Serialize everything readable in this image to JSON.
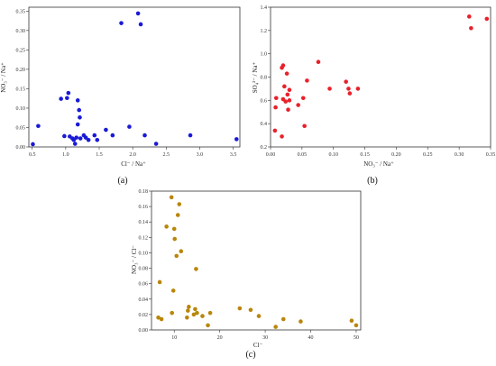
{
  "chart_data": [
    {
      "id": "a",
      "type": "scatter",
      "caption": "(a)",
      "xlabel": "Cl⁻ / Na⁺",
      "ylabel": "NO₃⁻ / Na⁺",
      "xlim": [
        0.45,
        3.6
      ],
      "ylim": [
        0,
        0.36
      ],
      "xticks": [
        0.5,
        1.0,
        1.5,
        2.0,
        2.5,
        3.0,
        3.5
      ],
      "xtick_labels": [
        "0.5",
        "1.0",
        "1.5",
        "2.0",
        "2.5",
        "3.0",
        "3.5"
      ],
      "yticks": [
        0,
        0.05,
        0.1,
        0.15,
        0.2,
        0.25,
        0.3,
        0.35
      ],
      "ytick_labels": [
        "0.00",
        "0.05",
        "0.10",
        "0.15",
        "0.20",
        "0.25",
        "0.30",
        "0.35"
      ],
      "color": "#1a1ad6",
      "grid": false,
      "points": [
        [
          0.51,
          0.007
        ],
        [
          0.59,
          0.054
        ],
        [
          0.93,
          0.124
        ],
        [
          0.98,
          0.028
        ],
        [
          1.02,
          0.126
        ],
        [
          1.04,
          0.139
        ],
        [
          1.06,
          0.027
        ],
        [
          1.1,
          0.022
        ],
        [
          1.12,
          0.018
        ],
        [
          1.14,
          0.008
        ],
        [
          1.16,
          0.024
        ],
        [
          1.18,
          0.058
        ],
        [
          1.18,
          0.12
        ],
        [
          1.2,
          0.095
        ],
        [
          1.21,
          0.076
        ],
        [
          1.22,
          0.022
        ],
        [
          1.27,
          0.03
        ],
        [
          1.3,
          0.024
        ],
        [
          1.34,
          0.018
        ],
        [
          1.43,
          0.03
        ],
        [
          1.47,
          0.018
        ],
        [
          1.6,
          0.044
        ],
        [
          1.7,
          0.03
        ],
        [
          1.83,
          0.319
        ],
        [
          1.95,
          0.052
        ],
        [
          2.08,
          0.344
        ],
        [
          2.12,
          0.316
        ],
        [
          2.18,
          0.03
        ],
        [
          2.35,
          0.008
        ],
        [
          2.86,
          0.03
        ],
        [
          3.55,
          0.02
        ]
      ]
    },
    {
      "id": "b",
      "type": "scatter",
      "caption": "(b)",
      "xlabel": "NO₃⁻ / Na⁺",
      "ylabel": "SO₄²⁻ / Na⁺",
      "xlim": [
        0,
        0.35
      ],
      "ylim": [
        0.2,
        1.4
      ],
      "xticks": [
        0,
        0.05,
        0.1,
        0.15,
        0.2,
        0.25,
        0.3,
        0.35
      ],
      "xtick_labels": [
        "0.00",
        "0.05",
        "0.10",
        "0.15",
        "0.20",
        "0.25",
        "0.30",
        "0.35"
      ],
      "yticks": [
        0.2,
        0.4,
        0.6,
        0.8,
        1.0,
        1.2,
        1.4
      ],
      "ytick_labels": [
        "0.2",
        "0.4",
        "0.6",
        "0.8",
        "1.0",
        "1.2",
        "1.4"
      ],
      "color": "#e8212b",
      "grid": false,
      "points": [
        [
          0.007,
          0.34
        ],
        [
          0.008,
          0.54
        ],
        [
          0.009,
          0.62
        ],
        [
          0.018,
          0.29
        ],
        [
          0.018,
          0.88
        ],
        [
          0.02,
          0.61
        ],
        [
          0.02,
          0.9
        ],
        [
          0.022,
          0.72
        ],
        [
          0.024,
          0.59
        ],
        [
          0.026,
          0.83
        ],
        [
          0.027,
          0.65
        ],
        [
          0.028,
          0.52
        ],
        [
          0.03,
          0.69
        ],
        [
          0.03,
          0.6
        ],
        [
          0.044,
          0.56
        ],
        [
          0.052,
          0.62
        ],
        [
          0.054,
          0.38
        ],
        [
          0.058,
          0.77
        ],
        [
          0.076,
          0.93
        ],
        [
          0.094,
          0.7
        ],
        [
          0.12,
          0.76
        ],
        [
          0.124,
          0.7
        ],
        [
          0.126,
          0.66
        ],
        [
          0.139,
          0.7
        ],
        [
          0.316,
          1.32
        ],
        [
          0.319,
          1.22
        ],
        [
          0.344,
          1.3
        ]
      ]
    },
    {
      "id": "c",
      "type": "scatter",
      "caption": "(c)",
      "xlabel": "Cl⁻",
      "ylabel": "NO₃⁻ / Cl⁻",
      "xlim": [
        5,
        51
      ],
      "ylim": [
        0,
        0.18
      ],
      "xticks": [
        10,
        20,
        30,
        40,
        50
      ],
      "xtick_labels": [
        "10",
        "20",
        "30",
        "40",
        "50"
      ],
      "yticks": [
        0,
        0.02,
        0.04,
        0.06,
        0.08,
        0.1,
        0.12,
        0.14,
        0.16,
        0.18
      ],
      "ytick_labels": [
        "0.00",
        "0.02",
        "0.04",
        "0.06",
        "0.08",
        "0.10",
        "0.12",
        "0.14",
        "0.16",
        "0.18"
      ],
      "color": "#b8860b",
      "grid": false,
      "points": [
        [
          6.5,
          0.016
        ],
        [
          6.8,
          0.062
        ],
        [
          7.2,
          0.014
        ],
        [
          8.3,
          0.134
        ],
        [
          9.4,
          0.172
        ],
        [
          9.5,
          0.022
        ],
        [
          9.8,
          0.051
        ],
        [
          10.0,
          0.131
        ],
        [
          10.1,
          0.118
        ],
        [
          10.5,
          0.096
        ],
        [
          10.8,
          0.149
        ],
        [
          11.1,
          0.163
        ],
        [
          11.5,
          0.102
        ],
        [
          12.8,
          0.016
        ],
        [
          13.0,
          0.025
        ],
        [
          13.2,
          0.03
        ],
        [
          14.3,
          0.02
        ],
        [
          14.6,
          0.027
        ],
        [
          14.8,
          0.079
        ],
        [
          15.0,
          0.022
        ],
        [
          16.2,
          0.018
        ],
        [
          17.4,
          0.006
        ],
        [
          17.9,
          0.022
        ],
        [
          24.4,
          0.028
        ],
        [
          26.8,
          0.026
        ],
        [
          28.6,
          0.018
        ],
        [
          32.3,
          0.004
        ],
        [
          34.0,
          0.014
        ],
        [
          37.8,
          0.011
        ],
        [
          49.0,
          0.012
        ],
        [
          50.0,
          0.006
        ]
      ]
    }
  ]
}
